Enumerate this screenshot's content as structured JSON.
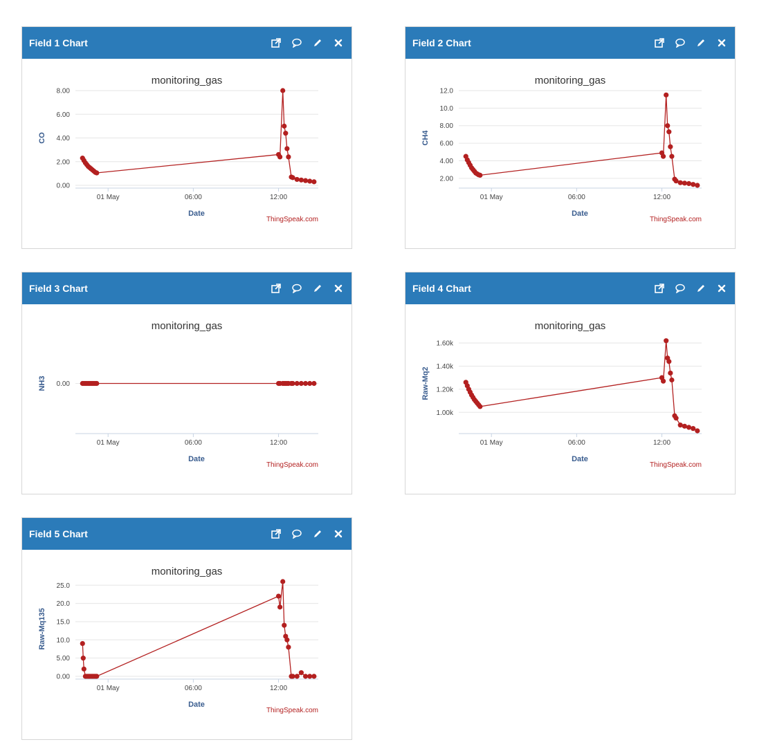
{
  "colors": {
    "header": "#2b7bb9",
    "series": "#b32020",
    "axis_label": "#3a5d8f",
    "credit": "#b32020"
  },
  "toolbar_icons": [
    "open-window-icon",
    "comment-icon",
    "pencil-icon",
    "close-icon"
  ],
  "charts": [
    {
      "panel_title": "Field 1 Chart",
      "chart_title": "monitoring_gas",
      "ylabel": "CO",
      "xlabel": "Date",
      "credit": "ThingSpeak.com",
      "y_ticks": [
        "0.00",
        "2.00",
        "4.00",
        "6.00",
        "8.00"
      ],
      "x_ticks": [
        "01 May",
        "06:00",
        "12:00"
      ]
    },
    {
      "panel_title": "Field 2 Chart",
      "chart_title": "monitoring_gas",
      "ylabel": "CH4",
      "xlabel": "Date",
      "credit": "ThingSpeak.com",
      "y_ticks": [
        "2.00",
        "4.00",
        "6.00",
        "8.00",
        "10.0",
        "12.0"
      ],
      "x_ticks": [
        "01 May",
        "06:00",
        "12:00"
      ]
    },
    {
      "panel_title": "Field 3 Chart",
      "chart_title": "monitoring_gas",
      "ylabel": "NH3",
      "xlabel": "Date",
      "credit": "ThingSpeak.com",
      "y_ticks": [
        "0.00"
      ],
      "x_ticks": [
        "01 May",
        "06:00",
        "12:00"
      ]
    },
    {
      "panel_title": "Field 4 Chart",
      "chart_title": "monitoring_gas",
      "ylabel": "Raw-Mq2",
      "xlabel": "Date",
      "credit": "ThingSpeak.com",
      "y_ticks": [
        "1.00k",
        "1.20k",
        "1.40k",
        "1.60k"
      ],
      "x_ticks": [
        "01 May",
        "06:00",
        "12:00"
      ]
    },
    {
      "panel_title": "Field 5 Chart",
      "chart_title": "monitoring_gas",
      "ylabel": "Raw-Mq135",
      "xlabel": "Date",
      "credit": "ThingSpeak.com",
      "y_ticks": [
        "0.00",
        "5.00",
        "10.0",
        "15.0",
        "20.0",
        "25.0"
      ],
      "x_ticks": [
        "01 May",
        "06:00",
        "12:00"
      ]
    }
  ],
  "chart_data": [
    {
      "type": "line",
      "title": "monitoring_gas",
      "xlabel": "Date",
      "ylabel": "CO",
      "x_ticks": [
        "01 May",
        "06:00",
        "12:00"
      ],
      "x": [
        -1.8,
        -1.7,
        -1.6,
        -1.5,
        -1.4,
        -1.3,
        -1.2,
        -1.1,
        -1.0,
        -0.9,
        -0.8,
        12.0,
        12.1,
        12.3,
        12.4,
        12.5,
        12.6,
        12.7,
        12.9,
        13.0,
        13.3,
        13.6,
        13.9,
        14.2,
        14.5
      ],
      "y": [
        2.3,
        2.1,
        1.9,
        1.75,
        1.6,
        1.5,
        1.4,
        1.3,
        1.2,
        1.1,
        1.05,
        2.6,
        2.4,
        8.0,
        5.0,
        4.4,
        3.1,
        2.4,
        0.7,
        0.65,
        0.5,
        0.45,
        0.4,
        0.35,
        0.3
      ],
      "ylim": [
        0,
        8
      ]
    },
    {
      "type": "line",
      "title": "monitoring_gas",
      "xlabel": "Date",
      "ylabel": "CH4",
      "x_ticks": [
        "01 May",
        "06:00",
        "12:00"
      ],
      "x": [
        -1.8,
        -1.7,
        -1.6,
        -1.5,
        -1.4,
        -1.3,
        -1.2,
        -1.1,
        -1.0,
        -0.9,
        -0.8,
        12.0,
        12.1,
        12.3,
        12.4,
        12.5,
        12.6,
        12.7,
        12.9,
        13.0,
        13.3,
        13.6,
        13.9,
        14.2,
        14.5
      ],
      "y": [
        4.5,
        4.1,
        3.8,
        3.5,
        3.2,
        3.0,
        2.8,
        2.6,
        2.5,
        2.4,
        2.35,
        4.9,
        4.5,
        11.5,
        8.0,
        7.3,
        5.6,
        4.5,
        1.9,
        1.7,
        1.5,
        1.45,
        1.4,
        1.3,
        1.2
      ],
      "ylim": [
        1.2,
        12
      ]
    },
    {
      "type": "line",
      "title": "monitoring_gas",
      "xlabel": "Date",
      "ylabel": "NH3",
      "x_ticks": [
        "01 May",
        "06:00",
        "12:00"
      ],
      "x": [
        -1.8,
        -1.7,
        -1.6,
        -1.5,
        -1.4,
        -1.3,
        -1.2,
        -1.1,
        -1.0,
        -0.9,
        -0.8,
        12.0,
        12.1,
        12.3,
        12.4,
        12.5,
        12.6,
        12.7,
        12.9,
        13.0,
        13.3,
        13.6,
        13.9,
        14.2,
        14.5
      ],
      "y": [
        0,
        0,
        0,
        0,
        0,
        0,
        0,
        0,
        0,
        0,
        0,
        0,
        0,
        0,
        0,
        0,
        0,
        0,
        0,
        0,
        0,
        0,
        0,
        0,
        0
      ],
      "ylim": [
        -1,
        1
      ]
    },
    {
      "type": "line",
      "title": "monitoring_gas",
      "xlabel": "Date",
      "ylabel": "Raw-Mq2",
      "x_ticks": [
        "01 May",
        "06:00",
        "12:00"
      ],
      "x": [
        -1.8,
        -1.7,
        -1.6,
        -1.5,
        -1.4,
        -1.3,
        -1.2,
        -1.1,
        -1.0,
        -0.9,
        -0.8,
        12.0,
        12.1,
        12.3,
        12.4,
        12.5,
        12.6,
        12.7,
        12.9,
        13.0,
        13.3,
        13.6,
        13.9,
        14.2,
        14.5
      ],
      "y": [
        1260,
        1230,
        1200,
        1175,
        1150,
        1130,
        1110,
        1095,
        1080,
        1065,
        1050,
        1300,
        1270,
        1620,
        1470,
        1440,
        1340,
        1280,
        970,
        950,
        890,
        880,
        870,
        860,
        840
      ],
      "ylim": [
        840,
        1660
      ]
    },
    {
      "type": "line",
      "title": "monitoring_gas",
      "xlabel": "Date",
      "ylabel": "Raw-Mq135",
      "x_ticks": [
        "01 May",
        "06:00",
        "12:00"
      ],
      "x": [
        -1.8,
        -1.75,
        -1.7,
        -1.6,
        -1.5,
        -1.4,
        -1.3,
        -1.2,
        -1.1,
        -1.0,
        -0.9,
        -0.8,
        12.0,
        12.1,
        12.3,
        12.4,
        12.5,
        12.6,
        12.7,
        12.9,
        13.0,
        13.3,
        13.6,
        13.9,
        14.2,
        14.5
      ],
      "y": [
        9,
        5,
        2,
        0,
        0,
        0,
        0,
        0,
        0,
        0,
        0,
        0,
        22,
        19,
        26,
        14,
        11,
        10,
        8,
        0,
        0,
        0,
        1,
        0,
        0,
        0
      ],
      "ylim": [
        0,
        26
      ]
    }
  ]
}
